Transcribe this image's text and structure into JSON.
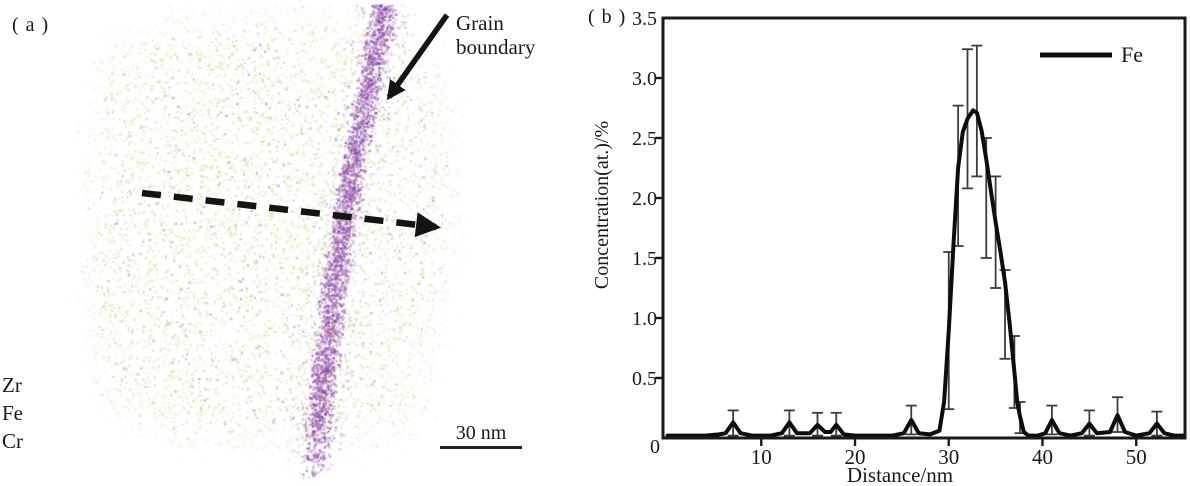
{
  "figure": {
    "panel_a": {
      "label": "( a )",
      "grain_boundary_line1": "Grain",
      "grain_boundary_line2": "boundary",
      "element_zr": "Zr",
      "element_fe": "Fe",
      "element_cr": "Cr",
      "scale_bar_label": "30 nm",
      "colors": {
        "matrix": "#cbe18c",
        "matrix_light": "#e0efb0",
        "matrix_dark": "#b5d272",
        "noise": "#a49db2",
        "noise_purple": "#b07cc8",
        "boundary": "#9a55b8",
        "boundary_dark": "#7d3b9e",
        "boundary_light": "#c49ad9",
        "speck_orange": "#d4913f",
        "annotation": "#141414"
      }
    },
    "panel_b": {
      "label": "( b )"
    }
  },
  "chart_data": {
    "type": "line",
    "title": "",
    "xlabel": "Distance/nm",
    "ylabel": "Concentration(at.)/%",
    "xlim": [
      0,
      55.2
    ],
    "ylim": [
      0,
      3.5
    ],
    "grid": false,
    "xticks": [
      10,
      20,
      30,
      40,
      50
    ],
    "yticks": [
      {
        "v": 0,
        "label": "0"
      },
      {
        "v": 0.5,
        "label": "0.5"
      },
      {
        "v": 1,
        "label": "1.0"
      },
      {
        "v": 1.5,
        "label": "1.5"
      },
      {
        "v": 2,
        "label": "2.0"
      },
      {
        "v": 2.5,
        "label": "2.5"
      },
      {
        "v": 3,
        "label": "3.0"
      },
      {
        "v": 3.5,
        "label": "3.5"
      }
    ],
    "legend": {
      "label": "Fe",
      "position": "top-right"
    },
    "axis_color": "#1a1a1a",
    "error_bar_color": "#3d3d3d",
    "series": [
      {
        "name": "Fe",
        "color": "#0d0d0d",
        "points": [
          [
            0,
            0.02
          ],
          [
            2,
            0.02
          ],
          [
            4,
            0.02
          ],
          [
            5.5,
            0.03
          ],
          [
            6.2,
            0.04
          ],
          [
            7,
            0.13
          ],
          [
            7.8,
            0.04
          ],
          [
            9,
            0.02
          ],
          [
            11,
            0.02
          ],
          [
            12.2,
            0.04
          ],
          [
            13,
            0.13
          ],
          [
            13.8,
            0.04
          ],
          [
            15.2,
            0.04
          ],
          [
            16,
            0.11
          ],
          [
            16.8,
            0.05
          ],
          [
            17.4,
            0.05
          ],
          [
            18,
            0.11
          ],
          [
            18.8,
            0.03
          ],
          [
            20,
            0.02
          ],
          [
            22,
            0.02
          ],
          [
            24,
            0.02
          ],
          [
            25.2,
            0.04
          ],
          [
            26,
            0.15
          ],
          [
            26.8,
            0.04
          ],
          [
            28,
            0.03
          ],
          [
            29,
            0.06
          ],
          [
            29.5,
            0.3
          ],
          [
            30,
            0.9
          ],
          [
            30.5,
            1.6
          ],
          [
            31,
            2.25
          ],
          [
            31.5,
            2.55
          ],
          [
            32,
            2.66
          ],
          [
            32.6,
            2.73
          ],
          [
            33,
            2.71
          ],
          [
            33.5,
            2.56
          ],
          [
            34,
            2.32
          ],
          [
            34.5,
            2.06
          ],
          [
            35,
            1.8
          ],
          [
            35.5,
            1.56
          ],
          [
            36,
            1.3
          ],
          [
            36.5,
            0.95
          ],
          [
            37,
            0.55
          ],
          [
            37.3,
            0.3
          ],
          [
            37.6,
            0.18
          ],
          [
            38,
            0.05
          ],
          [
            38.5,
            0.02
          ],
          [
            39.5,
            0.02
          ],
          [
            40.3,
            0.04
          ],
          [
            41,
            0.15
          ],
          [
            41.8,
            0.04
          ],
          [
            43,
            0.02
          ],
          [
            44.2,
            0.04
          ],
          [
            45,
            0.12
          ],
          [
            45.8,
            0.04
          ],
          [
            47.2,
            0.05
          ],
          [
            48,
            0.19
          ],
          [
            48.8,
            0.05
          ],
          [
            50,
            0.02
          ],
          [
            51.4,
            0.04
          ],
          [
            52.2,
            0.12
          ],
          [
            53,
            0.04
          ],
          [
            54,
            0.02
          ],
          [
            55,
            0.02
          ]
        ],
        "error_bars": [
          [
            7,
            0.02,
            0.23
          ],
          [
            13,
            0.02,
            0.23
          ],
          [
            16,
            0.02,
            0.21
          ],
          [
            18,
            0.02,
            0.21
          ],
          [
            26,
            0.03,
            0.27
          ],
          [
            30,
            0.24,
            1.55
          ],
          [
            31,
            1.6,
            2.77
          ],
          [
            32,
            2.08,
            3.24
          ],
          [
            33,
            2.18,
            3.27
          ],
          [
            34,
            1.5,
            2.5
          ],
          [
            35,
            1.25,
            2.18
          ],
          [
            36,
            0.66,
            1.4
          ],
          [
            37,
            0.25,
            0.85
          ],
          [
            37.6,
            0.04,
            0.3
          ],
          [
            41,
            0.03,
            0.27
          ],
          [
            45,
            0.02,
            0.23
          ],
          [
            48,
            0.05,
            0.34
          ],
          [
            52.2,
            0.02,
            0.22
          ]
        ]
      }
    ]
  }
}
